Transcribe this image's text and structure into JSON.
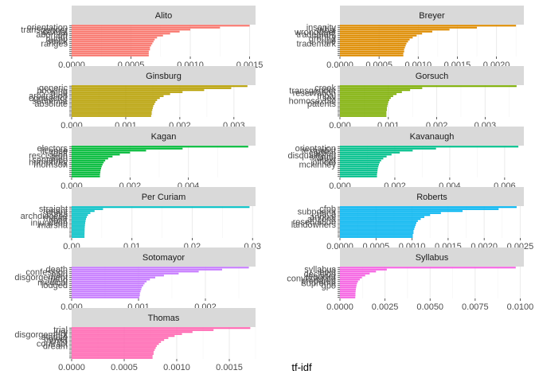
{
  "chart_data": {
    "type": "bar",
    "orientation": "horizontal",
    "faceted": true,
    "facet_columns": 2,
    "xlabel": "tf-idf",
    "ylabel": "",
    "grid": true,
    "legend": "none",
    "facets": [
      {
        "name": "Alito",
        "color": "#F8766D",
        "xlim": [
          0,
          0.00155
        ],
        "xticks": [
          0,
          0.0005,
          0.001,
          0.0015
        ],
        "xtick_labels": [
          "0.0000",
          "0.0005",
          "0.0010",
          "0.0015"
        ],
        "words": [
          "orientation",
          "transgender",
          "sexual",
          "abortion",
          "atf",
          "bump",
          "stock",
          "ranges",
          "",
          "",
          "",
          "",
          "",
          "",
          "",
          ""
        ],
        "values": [
          0.0015,
          0.00125,
          0.001,
          0.00091,
          0.00083,
          0.00077,
          0.00072,
          0.0007,
          0.00069,
          0.00068,
          0.00067,
          0.00066,
          0.00066,
          0.00065,
          0.00065,
          0.00065
        ]
      },
      {
        "name": "Breyer",
        "color": "#DE8C00",
        "xlim": [
          0,
          0.00235
        ],
        "xticks": [
          0,
          0.0005,
          0.001,
          0.0015,
          0.002
        ],
        "xtick_labels": [
          "0.0000",
          "0.0005",
          "0.0010",
          "0.0015",
          "0.0020"
        ],
        "words": [
          "insanity",
          "tribal",
          "wrongdoer",
          "trademark",
          "entry",
          "ground",
          "rule",
          "trademark",
          "",
          "",
          "",
          "",
          "",
          "",
          "",
          ""
        ],
        "values": [
          0.00225,
          0.00175,
          0.0014,
          0.00118,
          0.00105,
          0.00098,
          0.00093,
          0.00089,
          0.00087,
          0.00085,
          0.00084,
          0.00083,
          0.00082,
          0.00082,
          0.00081,
          0.00081
        ]
      },
      {
        "name": "Ginsburg",
        "color": "#B79F00",
        "xlim": [
          0,
          0.0034
        ],
        "xticks": [
          0,
          0.001,
          0.002,
          0.003
        ],
        "xtick_labels": [
          "0.000",
          "0.001",
          "0.002",
          "0.003"
        ],
        "words": [
          "generic",
          "booking",
          "tribe",
          "arbitration",
          "contractor",
          "sentence",
          "absolute",
          "",
          "",
          "",
          "",
          "",
          "",
          "",
          "",
          ""
        ],
        "values": [
          0.00325,
          0.00295,
          0.00245,
          0.00205,
          0.00182,
          0.0017,
          0.00163,
          0.00158,
          0.00155,
          0.00153,
          0.00151,
          0.0015,
          0.00149,
          0.00148,
          0.00148,
          0.00147
        ]
      },
      {
        "name": "Gorsuch",
        "color": "#7CAE00",
        "xlim": [
          0,
          0.0038
        ],
        "xticks": [
          0,
          0.001,
          0.002,
          0.003
        ],
        "xtick_labels": [
          "0.000",
          "0.001",
          "0.002",
          "0.003"
        ],
        "words": [
          "creek",
          "transgender",
          "reservation",
          "tribal",
          "sex",
          "homosexual",
          "patents",
          "",
          "",
          "",
          "",
          "",
          "",
          "",
          "",
          ""
        ],
        "values": [
          0.00365,
          0.0017,
          0.00145,
          0.00128,
          0.00117,
          0.0011,
          0.00105,
          0.00102,
          0.001,
          0.00099,
          0.00098,
          0.00097,
          0.00097,
          0.00096,
          0.00096,
          0.00096
        ]
      },
      {
        "name": "Kagan",
        "color": "#00BA38",
        "xlim": [
          0,
          0.0063
        ],
        "xticks": [
          0,
          0.002,
          0.004
        ],
        "xtick_labels": [
          "0.000",
          "0.002",
          "0.004"
        ],
        "words": [
          "electors",
          "license",
          "tariff",
          "rescission",
          "loan",
          "sentence",
          "humphrey",
          "morrison",
          "",
          "",
          "",
          "",
          "",
          "",
          "",
          ""
        ],
        "values": [
          0.00605,
          0.0038,
          0.00255,
          0.002,
          0.00165,
          0.0014,
          0.00125,
          0.00115,
          0.0011,
          0.00106,
          0.00103,
          0.00101,
          0.00099,
          0.00098,
          0.00097,
          0.00097
        ]
      },
      {
        "name": "Kavanaugh",
        "color": "#00C08B",
        "xlim": [
          0,
          0.0067
        ],
        "xticks": [
          0,
          0.002,
          0.004,
          0.006
        ],
        "xtick_labels": [
          "0.000",
          "0.002",
          "0.004",
          "0.006"
        ],
        "words": [
          "orientation",
          "textualist",
          "carbon",
          "disqualifying",
          "statute",
          "text",
          "officer",
          "mckinney",
          "",
          "",
          "",
          "",
          "",
          "",
          "",
          ""
        ],
        "values": [
          0.0065,
          0.0035,
          0.00265,
          0.00218,
          0.00188,
          0.0017,
          0.00158,
          0.0015,
          0.00145,
          0.00142,
          0.0014,
          0.00138,
          0.00137,
          0.00136,
          0.00135,
          0.00135
        ]
      },
      {
        "name": "Per Curiam",
        "color": "#00BFC4",
        "xlim": [
          0,
          0.0305
        ],
        "xticks": [
          0,
          0.01,
          0.02,
          0.03
        ],
        "xtick_labels": [
          "0.00",
          "0.01",
          "0.02",
          "0.03"
        ],
        "words": [
          "straight",
          "tenant",
          "rights",
          "archdiocese",
          "mayor",
          "paint",
          "injunction",
          "marsha",
          "",
          "",
          "",
          "",
          "",
          "",
          "",
          ""
        ],
        "values": [
          0.0295,
          0.0052,
          0.0038,
          0.0031,
          0.0027,
          0.0025,
          0.00238,
          0.0023,
          0.00225,
          0.00221,
          0.00218,
          0.00216,
          0.00215,
          0.00214,
          0.00213,
          0.00213
        ]
      },
      {
        "name": "Roberts",
        "color": "#00B4F0",
        "xlim": [
          0,
          0.00255
        ],
        "xticks": [
          0,
          0.0005,
          0.001,
          0.0015,
          0.002,
          0.0025
        ],
        "xtick_labels": [
          "0.0000",
          "0.0005",
          "0.0010",
          "0.0015",
          "0.0020",
          "0.0025"
        ],
        "words": [
          "cfpb",
          "subpoena",
          "daca",
          "annual",
          "arizona",
          "reservation",
          "landowners",
          "",
          "",
          "",
          "",
          "",
          "",
          "",
          "",
          ""
        ],
        "values": [
          0.00245,
          0.0022,
          0.0017,
          0.0014,
          0.00125,
          0.00117,
          0.00112,
          0.00108,
          0.00106,
          0.00105,
          0.00104,
          0.00103,
          0.00102,
          0.00102,
          0.00101,
          0.00101
        ]
      },
      {
        "name": "Sotomayor",
        "color": "#C77CFF",
        "xlim": [
          0,
          0.00275
        ],
        "xticks": [
          0,
          0.001,
          0.002
        ],
        "xtick_labels": [
          "0.000",
          "0.001",
          "0.002"
        ],
        "words": [
          "death",
          "confession",
          "pain",
          "disgorgement",
          "fraud",
          "medical",
          "lodged",
          "",
          "",
          "",
          "",
          "",
          "",
          "",
          "",
          ""
        ],
        "values": [
          0.00265,
          0.00225,
          0.0019,
          0.0016,
          0.00138,
          0.00125,
          0.00117,
          0.00112,
          0.00109,
          0.00107,
          0.00105,
          0.00104,
          0.00103,
          0.00102,
          0.00102,
          0.00101
        ]
      },
      {
        "name": "Syllabus",
        "color": "#F564E3",
        "xlim": [
          0,
          0.0102
        ],
        "xticks": [
          0,
          0.0025,
          0.005,
          0.0075,
          0.01
        ],
        "xtick_labels": [
          "0.0000",
          "0.0025",
          "0.0050",
          "0.0075",
          "0.0100"
        ],
        "words": [
          "syllabus",
          "held",
          "decision",
          "reporter",
          "convenience",
          "prepared",
          "supreme",
          "gpo",
          "",
          "",
          "",
          "",
          "",
          "",
          "",
          ""
        ],
        "values": [
          0.00975,
          0.0026,
          0.002,
          0.00165,
          0.0014,
          0.00122,
          0.0011,
          0.001,
          0.00095,
          0.00092,
          0.0009,
          0.00088,
          0.00087,
          0.00086,
          0.00086,
          0.00085
        ]
      },
      {
        "name": "Thomas",
        "color": "#FF64B0",
        "xlim": [
          0,
          0.00175
        ],
        "xticks": [
          0,
          0.0005,
          0.001,
          0.0015
        ],
        "xtick_labels": [
          "0.0000",
          "0.0005",
          "0.0010",
          "0.0015"
        ],
        "words": [
          "trial",
          "jury",
          "disgorgement",
          "statute",
          "power",
          "child",
          "contract",
          "dream",
          "",
          "",
          "",
          "",
          "",
          "",
          "",
          ""
        ],
        "values": [
          0.0017,
          0.00135,
          0.00115,
          0.00105,
          0.00098,
          0.00092,
          0.00088,
          0.00085,
          0.00083,
          0.00081,
          0.0008,
          0.00079,
          0.00078,
          0.00078,
          0.00077,
          0.00077
        ]
      }
    ]
  }
}
